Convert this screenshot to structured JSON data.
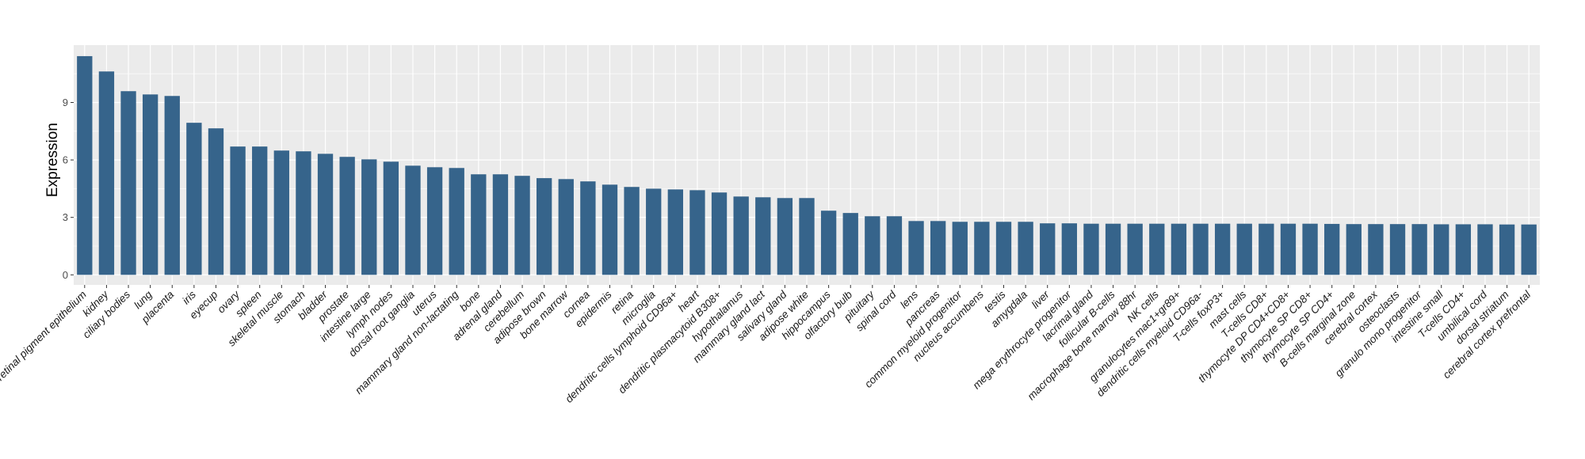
{
  "chart_data": {
    "type": "bar",
    "title": "",
    "xlabel": "",
    "ylabel": "Expression",
    "ylim": [
      0,
      12
    ],
    "yticks": [
      0,
      3,
      6,
      9
    ],
    "grid": true,
    "bar_color": "#36648B",
    "panel_color": "#EBEBEB",
    "categories": [
      "retinal pigment epithelium",
      "kidney",
      "ciliary bodies",
      "lung",
      "placenta",
      "iris",
      "eyecup",
      "ovary",
      "spleen",
      "skeletal muscle",
      "stomach",
      "bladder",
      "prostate",
      "intestine large",
      "lymph nodes",
      "dorsal root ganglia",
      "uterus",
      "mammary gland non-lactating",
      "bone",
      "adrenal gland",
      "cerebellum",
      "adipose brown",
      "bone marrow",
      "cornea",
      "epidermis",
      "retina",
      "microglia",
      "dendritic cells lymphoid CD96a+",
      "heart",
      "dendritic plasmacytoid B308+",
      "hypothalamus",
      "mammary gland  lact",
      "salivary gland",
      "adipose white",
      "hippocampus",
      "olfactory bulb",
      "pituitary",
      "spinal cord",
      "lens",
      "pancreas",
      "common myeloid progenitor",
      "nucleus accumbens",
      "testis",
      "amygdala",
      "liver",
      "mega erythrocyte progenitor",
      "lacrimal gland",
      "follicular B-cells",
      "macrophage bone marrow 88hr",
      "NK cells",
      "granulocytes mac1+gr89+",
      "dendritic cells myeloid CD96a-",
      "T-cells foxP3+",
      "mast cells",
      "T-cells CD8+",
      "thymocyte DP CD4+CD8+",
      "thymocyte SP CD8+",
      "thymocyte SP CD4+",
      "B-cells marginal zone",
      "cerebral cortex",
      "osteoclasts",
      "granulo mono progenitor",
      "intestine small",
      "T-cells CD4+",
      "umbilical cord",
      "dorsal striatum",
      "cerebral cortex prefrontal"
    ],
    "values": [
      11.42,
      10.62,
      9.59,
      9.42,
      9.34,
      7.94,
      7.65,
      6.7,
      6.7,
      6.49,
      6.45,
      6.32,
      6.16,
      6.03,
      5.91,
      5.7,
      5.62,
      5.58,
      5.25,
      5.25,
      5.17,
      5.05,
      5.0,
      4.88,
      4.71,
      4.59,
      4.5,
      4.46,
      4.42,
      4.3,
      4.09,
      4.05,
      4.01,
      4.01,
      3.35,
      3.23,
      3.06,
      3.06,
      2.81,
      2.81,
      2.77,
      2.77,
      2.77,
      2.77,
      2.69,
      2.69,
      2.67,
      2.67,
      2.67,
      2.67,
      2.67,
      2.67,
      2.67,
      2.67,
      2.67,
      2.67,
      2.67,
      2.66,
      2.65,
      2.65,
      2.65,
      2.65,
      2.64,
      2.64,
      2.64,
      2.63,
      2.63
    ]
  }
}
